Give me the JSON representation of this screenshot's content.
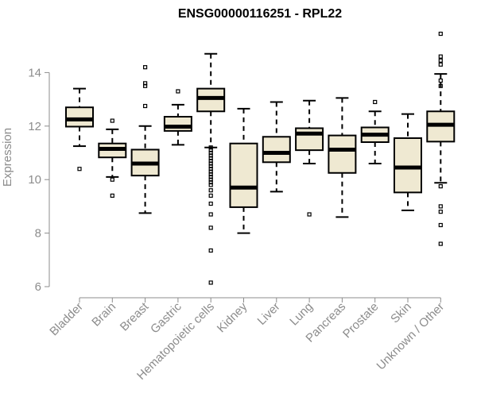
{
  "chart_data": {
    "type": "boxplot",
    "title": "ENSG00000116251 - RPL22",
    "ylabel": "Expression",
    "xlabel": "",
    "ylim": [
      6,
      15.5
    ],
    "yticks": [
      6,
      8,
      10,
      12,
      14
    ],
    "box_fill": "#efe9d2",
    "box_stroke": "#000000",
    "axis_color": "#8c8c8c",
    "grid": false,
    "categories": [
      "Bladder",
      "Brain",
      "Breast",
      "Gastric",
      "Hematopoietic cells",
      "Kidney",
      "Liver",
      "Lung",
      "Pancreas",
      "Prostate",
      "Skin",
      "Unknown / Other"
    ],
    "boxes": [
      {
        "category": "Bladder",
        "whisker_low": 11.25,
        "q1": 11.98,
        "median": 12.25,
        "q3": 12.7,
        "whisker_high": 13.4,
        "outliers": [
          10.4
        ]
      },
      {
        "category": "Brain",
        "whisker_low": 10.1,
        "q1": 10.83,
        "median": 11.15,
        "q3": 11.35,
        "whisker_high": 11.88,
        "outliers": [
          12.2,
          10.0,
          9.4
        ]
      },
      {
        "category": "Breast",
        "whisker_low": 8.75,
        "q1": 10.15,
        "median": 10.6,
        "q3": 11.12,
        "whisker_high": 12.0,
        "outliers": [
          14.2,
          13.6,
          13.5,
          12.75
        ]
      },
      {
        "category": "Gastric",
        "whisker_low": 11.3,
        "q1": 11.82,
        "median": 11.98,
        "q3": 12.35,
        "whisker_high": 12.8,
        "outliers": [
          13.3
        ]
      },
      {
        "category": "Hematopoietic cells",
        "whisker_low": 11.2,
        "q1": 12.55,
        "median": 13.05,
        "q3": 13.4,
        "whisker_high": 14.7,
        "outliers": [
          11.2,
          11.1,
          11.0,
          10.9,
          10.8,
          10.7,
          10.6,
          10.5,
          10.4,
          10.3,
          10.2,
          10.1,
          10.0,
          9.9,
          9.8,
          9.6,
          9.4,
          9.1,
          8.7,
          8.2,
          7.35,
          6.15
        ]
      },
      {
        "category": "Kidney",
        "whisker_low": 8.0,
        "q1": 8.97,
        "median": 9.7,
        "q3": 11.35,
        "whisker_high": 12.65,
        "outliers": []
      },
      {
        "category": "Liver",
        "whisker_low": 9.55,
        "q1": 10.65,
        "median": 11.0,
        "q3": 11.6,
        "whisker_high": 12.9,
        "outliers": []
      },
      {
        "category": "Lung",
        "whisker_low": 10.6,
        "q1": 11.1,
        "median": 11.72,
        "q3": 11.92,
        "whisker_high": 12.95,
        "outliers": [
          8.7
        ]
      },
      {
        "category": "Pancreas",
        "whisker_low": 8.6,
        "q1": 10.25,
        "median": 11.12,
        "q3": 11.65,
        "whisker_high": 13.05,
        "outliers": []
      },
      {
        "category": "Prostate",
        "whisker_low": 10.6,
        "q1": 11.4,
        "median": 11.68,
        "q3": 11.95,
        "whisker_high": 12.55,
        "outliers": [
          12.9
        ]
      },
      {
        "category": "Skin",
        "whisker_low": 8.85,
        "q1": 9.52,
        "median": 10.45,
        "q3": 11.55,
        "whisker_high": 12.45,
        "outliers": []
      },
      {
        "category": "Unknown / Other",
        "whisker_low": 9.88,
        "q1": 11.42,
        "median": 12.05,
        "q3": 12.55,
        "whisker_high": 13.95,
        "outliers": [
          15.45,
          14.6,
          14.45,
          14.3,
          13.7,
          13.5,
          9.75,
          9.0,
          8.8,
          8.3,
          7.6
        ]
      }
    ]
  }
}
